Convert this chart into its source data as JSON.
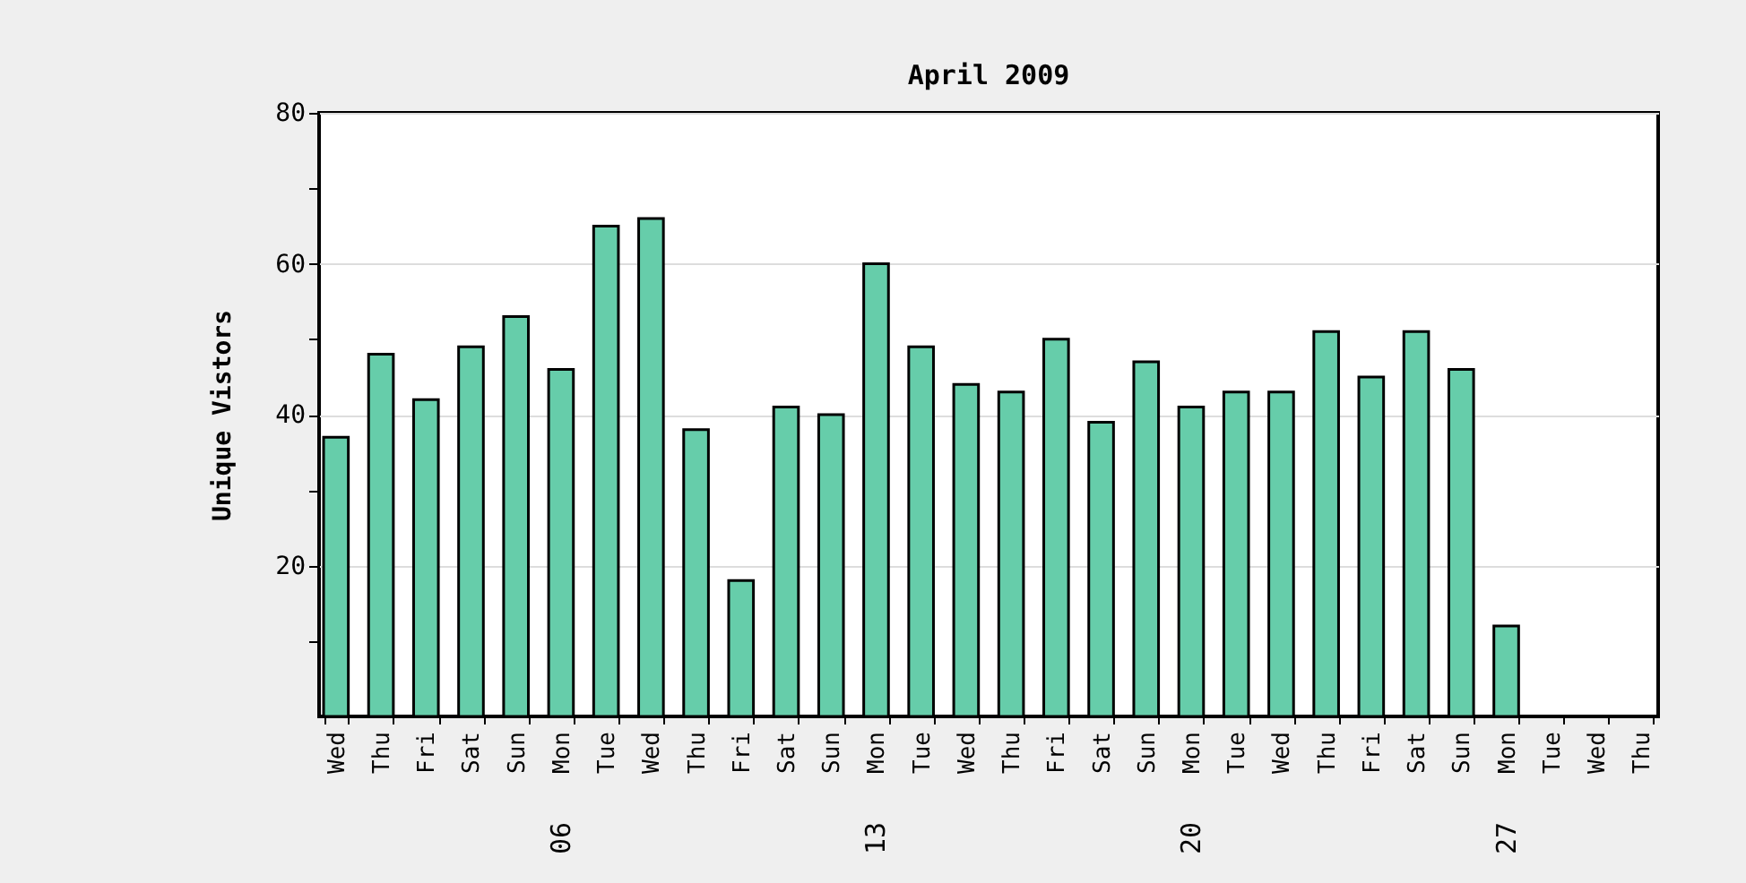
{
  "chart_data": {
    "type": "bar",
    "title": "April 2009",
    "ylabel": "Unique Vistors",
    "categories": [
      "Wed",
      "Thu",
      "Fri",
      "Sat",
      "Sun",
      "Mon 06",
      "Tue",
      "Wed",
      "Thu",
      "Fri",
      "Sat",
      "Sun",
      "Mon 13",
      "Tue",
      "Wed",
      "Thu",
      "Fri",
      "Sat",
      "Sun",
      "Mon 20",
      "Tue",
      "Wed",
      "Thu",
      "Fri",
      "Sat",
      "Sun",
      "Mon 27",
      "Tue",
      "Wed",
      "Thu"
    ],
    "values": [
      37,
      48,
      42,
      49,
      53,
      46,
      65,
      66,
      38,
      18,
      41,
      40,
      60,
      49,
      44,
      43,
      50,
      39,
      47,
      41,
      43,
      43,
      51,
      45,
      51,
      46,
      12,
      null,
      null,
      null
    ],
    "color": "#66cdaa",
    "ylim": [
      0,
      80
    ],
    "yticks": [
      {
        "value": 10,
        "label": null
      },
      20,
      {
        "value": 30,
        "label": null
      },
      40,
      {
        "value": 50,
        "label": null
      },
      60,
      {
        "value": 70,
        "label": null
      },
      80
    ],
    "grid": "y"
  }
}
